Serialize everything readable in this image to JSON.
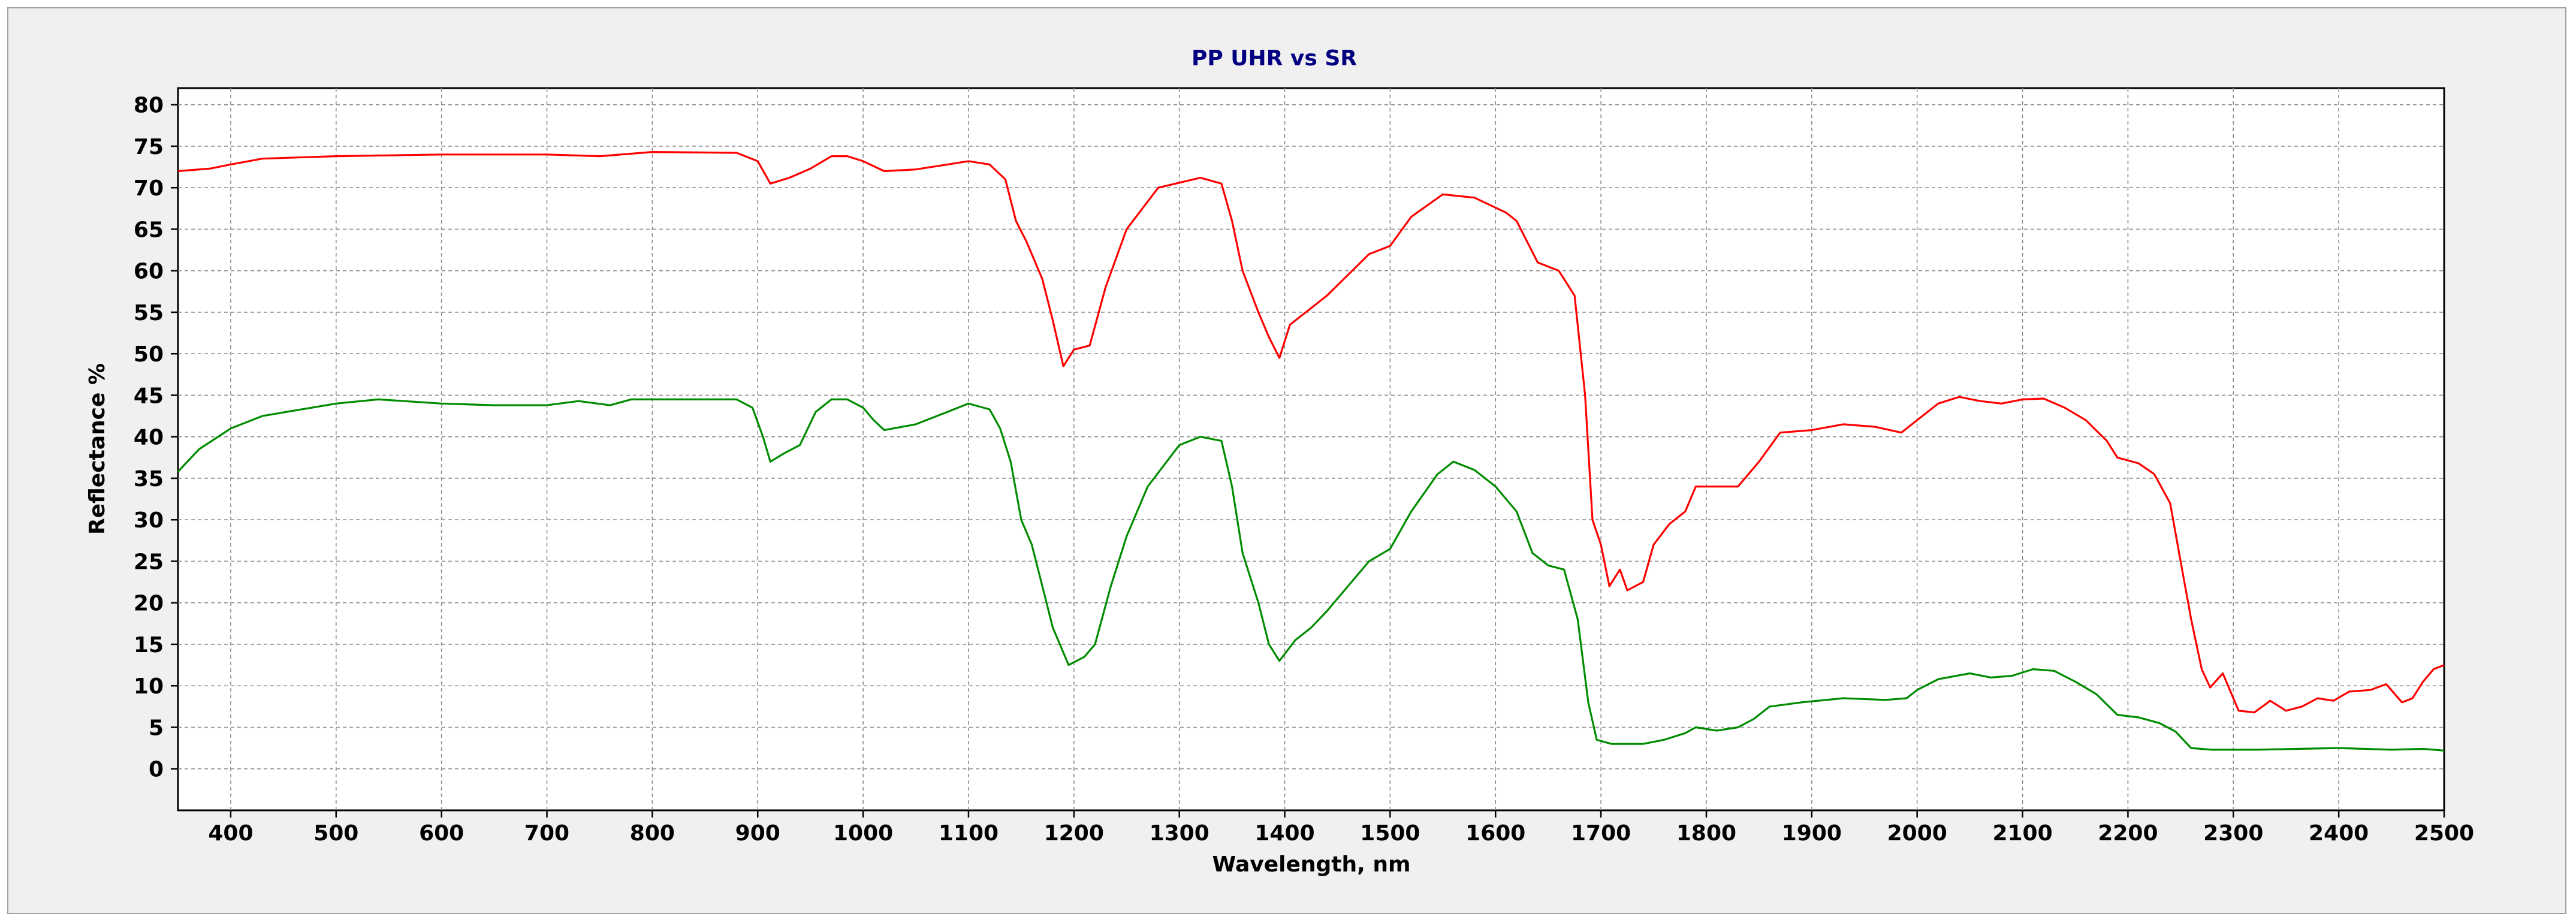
{
  "chart_data": {
    "type": "line",
    "title": "PP UHR vs SR",
    "xlabel": "Wavelength, nm",
    "ylabel": "Reflectance %",
    "xlim": [
      350,
      2500
    ],
    "ylim": [
      -5,
      82
    ],
    "x_ticks": [
      400,
      500,
      600,
      700,
      800,
      900,
      1000,
      1100,
      1200,
      1300,
      1400,
      1500,
      1600,
      1700,
      1800,
      1900,
      2000,
      2100,
      2200,
      2300,
      2400,
      2500
    ],
    "y_ticks": [
      0,
      5,
      10,
      15,
      20,
      25,
      30,
      35,
      40,
      45,
      50,
      55,
      60,
      65,
      70,
      75,
      80
    ],
    "grid": true,
    "legend": "none",
    "series": [
      {
        "color": "#ff0000",
        "points": [
          [
            350,
            72
          ],
          [
            380,
            72.3
          ],
          [
            400,
            72.8
          ],
          [
            430,
            73.5
          ],
          [
            500,
            73.8
          ],
          [
            600,
            74
          ],
          [
            700,
            74
          ],
          [
            750,
            73.8
          ],
          [
            800,
            74.3
          ],
          [
            880,
            74.2
          ],
          [
            900,
            73.2
          ],
          [
            912,
            70.5
          ],
          [
            930,
            71.2
          ],
          [
            950,
            72.3
          ],
          [
            970,
            73.8
          ],
          [
            985,
            73.8
          ],
          [
            1000,
            73.2
          ],
          [
            1020,
            72
          ],
          [
            1050,
            72.2
          ],
          [
            1080,
            72.8
          ],
          [
            1100,
            73.2
          ],
          [
            1120,
            72.8
          ],
          [
            1135,
            71
          ],
          [
            1145,
            66
          ],
          [
            1155,
            63.5
          ],
          [
            1170,
            59
          ],
          [
            1180,
            54
          ],
          [
            1190,
            48.5
          ],
          [
            1200,
            50.5
          ],
          [
            1215,
            51
          ],
          [
            1230,
            58
          ],
          [
            1250,
            65
          ],
          [
            1280,
            70
          ],
          [
            1320,
            71.2
          ],
          [
            1340,
            70.5
          ],
          [
            1350,
            66
          ],
          [
            1360,
            60
          ],
          [
            1375,
            55
          ],
          [
            1385,
            52
          ],
          [
            1395,
            49.5
          ],
          [
            1405,
            53.5
          ],
          [
            1420,
            55
          ],
          [
            1440,
            57
          ],
          [
            1460,
            59.5
          ],
          [
            1480,
            62
          ],
          [
            1500,
            63
          ],
          [
            1520,
            66.5
          ],
          [
            1550,
            69.2
          ],
          [
            1580,
            68.8
          ],
          [
            1610,
            67
          ],
          [
            1620,
            66
          ],
          [
            1640,
            61
          ],
          [
            1660,
            60
          ],
          [
            1675,
            57
          ],
          [
            1685,
            45
          ],
          [
            1692,
            30
          ],
          [
            1700,
            27
          ],
          [
            1708,
            22
          ],
          [
            1718,
            24
          ],
          [
            1725,
            21.5
          ],
          [
            1740,
            22.5
          ],
          [
            1750,
            27
          ],
          [
            1765,
            29.5
          ],
          [
            1780,
            31
          ],
          [
            1790,
            34
          ],
          [
            1810,
            34
          ],
          [
            1830,
            34
          ],
          [
            1850,
            37
          ],
          [
            1870,
            40.5
          ],
          [
            1900,
            40.8
          ],
          [
            1930,
            41.5
          ],
          [
            1960,
            41.2
          ],
          [
            1985,
            40.5
          ],
          [
            2000,
            42
          ],
          [
            2020,
            44
          ],
          [
            2040,
            44.8
          ],
          [
            2060,
            44.3
          ],
          [
            2080,
            44
          ],
          [
            2100,
            44.5
          ],
          [
            2120,
            44.6
          ],
          [
            2140,
            43.5
          ],
          [
            2160,
            42
          ],
          [
            2180,
            39.5
          ],
          [
            2190,
            37.5
          ],
          [
            2210,
            36.8
          ],
          [
            2225,
            35.5
          ],
          [
            2240,
            32
          ],
          [
            2250,
            25
          ],
          [
            2260,
            18
          ],
          [
            2270,
            12
          ],
          [
            2278,
            9.8
          ],
          [
            2290,
            11.5
          ],
          [
            2305,
            7
          ],
          [
            2320,
            6.8
          ],
          [
            2335,
            8.2
          ],
          [
            2350,
            7
          ],
          [
            2365,
            7.5
          ],
          [
            2380,
            8.5
          ],
          [
            2395,
            8.2
          ],
          [
            2410,
            9.3
          ],
          [
            2430,
            9.5
          ],
          [
            2445,
            10.2
          ],
          [
            2460,
            8
          ],
          [
            2470,
            8.5
          ],
          [
            2480,
            10.5
          ],
          [
            2490,
            12
          ],
          [
            2500,
            12.5
          ]
        ]
      },
      {
        "color": "#008c00",
        "points": [
          [
            350,
            35.8
          ],
          [
            370,
            38.5
          ],
          [
            400,
            41
          ],
          [
            430,
            42.5
          ],
          [
            500,
            44
          ],
          [
            540,
            44.5
          ],
          [
            600,
            44
          ],
          [
            650,
            43.8
          ],
          [
            700,
            43.8
          ],
          [
            730,
            44.3
          ],
          [
            760,
            43.8
          ],
          [
            780,
            44.5
          ],
          [
            880,
            44.5
          ],
          [
            895,
            43.5
          ],
          [
            905,
            40
          ],
          [
            912,
            37
          ],
          [
            925,
            38
          ],
          [
            940,
            39
          ],
          [
            955,
            43
          ],
          [
            970,
            44.5
          ],
          [
            985,
            44.5
          ],
          [
            1000,
            43.5
          ],
          [
            1010,
            42
          ],
          [
            1020,
            40.8
          ],
          [
            1050,
            41.5
          ],
          [
            1080,
            43
          ],
          [
            1100,
            44
          ],
          [
            1120,
            43.3
          ],
          [
            1130,
            41
          ],
          [
            1140,
            37
          ],
          [
            1150,
            30
          ],
          [
            1160,
            27
          ],
          [
            1170,
            22
          ],
          [
            1180,
            17
          ],
          [
            1195,
            12.5
          ],
          [
            1210,
            13.5
          ],
          [
            1220,
            15
          ],
          [
            1235,
            22
          ],
          [
            1250,
            28
          ],
          [
            1270,
            34
          ],
          [
            1300,
            39
          ],
          [
            1320,
            40
          ],
          [
            1340,
            39.5
          ],
          [
            1350,
            34
          ],
          [
            1360,
            26
          ],
          [
            1375,
            20
          ],
          [
            1385,
            15
          ],
          [
            1395,
            13
          ],
          [
            1410,
            15.5
          ],
          [
            1425,
            17
          ],
          [
            1440,
            19
          ],
          [
            1460,
            22
          ],
          [
            1480,
            25
          ],
          [
            1500,
            26.5
          ],
          [
            1520,
            31
          ],
          [
            1545,
            35.5
          ],
          [
            1560,
            37
          ],
          [
            1580,
            36
          ],
          [
            1600,
            34
          ],
          [
            1620,
            31
          ],
          [
            1635,
            26
          ],
          [
            1650,
            24.5
          ],
          [
            1665,
            24
          ],
          [
            1678,
            18
          ],
          [
            1688,
            8
          ],
          [
            1696,
            3.5
          ],
          [
            1710,
            3
          ],
          [
            1740,
            3
          ],
          [
            1760,
            3.5
          ],
          [
            1780,
            4.3
          ],
          [
            1790,
            5
          ],
          [
            1810,
            4.6
          ],
          [
            1830,
            5
          ],
          [
            1845,
            6
          ],
          [
            1860,
            7.5
          ],
          [
            1890,
            8
          ],
          [
            1930,
            8.5
          ],
          [
            1970,
            8.3
          ],
          [
            1990,
            8.5
          ],
          [
            2000,
            9.5
          ],
          [
            2020,
            10.8
          ],
          [
            2050,
            11.5
          ],
          [
            2070,
            11
          ],
          [
            2090,
            11.2
          ],
          [
            2110,
            12
          ],
          [
            2130,
            11.8
          ],
          [
            2150,
            10.5
          ],
          [
            2170,
            9
          ],
          [
            2190,
            6.5
          ],
          [
            2210,
            6.2
          ],
          [
            2230,
            5.5
          ],
          [
            2245,
            4.5
          ],
          [
            2260,
            2.5
          ],
          [
            2280,
            2.3
          ],
          [
            2320,
            2.3
          ],
          [
            2360,
            2.4
          ],
          [
            2400,
            2.5
          ],
          [
            2450,
            2.3
          ],
          [
            2480,
            2.4
          ],
          [
            2500,
            2.2
          ]
        ]
      }
    ]
  }
}
